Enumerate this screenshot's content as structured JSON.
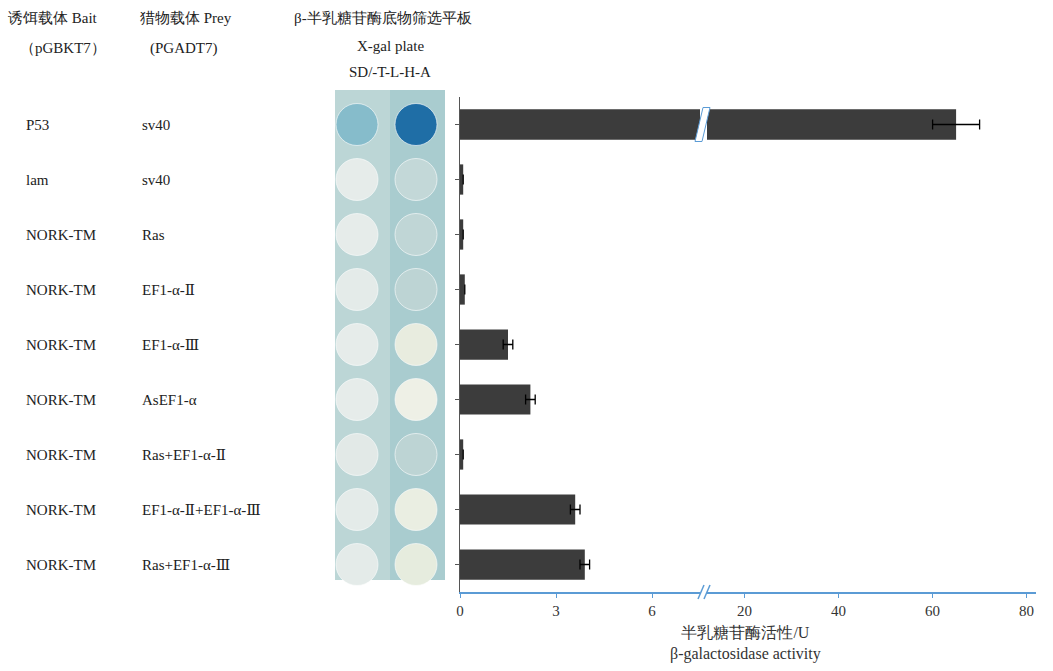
{
  "table": {
    "bait_header": [
      "诱饵载体 Bait",
      "（pGBKT7）"
    ],
    "prey_header": [
      "猎物载体 Prey",
      "(PGADT7)"
    ],
    "bait": [
      "P53",
      "lam",
      "NORK-TM",
      "NORK-TM",
      "NORK-TM",
      "NORK-TM",
      "NORK-TM",
      "NORK-TM",
      "NORK-TM"
    ]
  },
  "plate": {
    "title": "β-半乳糖苷酶底物筛选平板",
    "subtitle": [
      "X-gal plate",
      "SD/-T-L-H-A"
    ],
    "spots": [
      [
        "#86bccb",
        "#1f6ea6"
      ],
      [
        "#e6ecea",
        "#c3d8d8"
      ],
      [
        "#e6ecea",
        "#c0d6d6"
      ],
      [
        "#e4ebe9",
        "#bdd4d4"
      ],
      [
        "#e6ecea",
        "#e8ecdf"
      ],
      [
        "#e6ecea",
        "#eef0e6"
      ],
      [
        "#e2e9e7",
        "#bdd4d4"
      ],
      [
        "#e4ebe9",
        "#eaeee2"
      ],
      [
        "#e4ebe9",
        "#e6ecde"
      ]
    ]
  },
  "chart_data": {
    "type": "bar",
    "orientation": "horizontal",
    "categories": [
      "sv40",
      "sv40",
      "Ras",
      "EF1-α-Ⅱ",
      "EF1-α-Ⅲ",
      "AsEF1-α",
      "Ras+EF1-α-Ⅱ",
      "EF1-α-Ⅱ+EF1-α-Ⅲ",
      "Ras+EF1-α-Ⅲ"
    ],
    "values": [
      65,
      0.1,
      0.1,
      0.15,
      1.5,
      2.2,
      0.1,
      3.6,
      3.9
    ],
    "errors": [
      5,
      0,
      0,
      0,
      0.15,
      0.15,
      0,
      0.15,
      0.15
    ],
    "color": "#3c3c3c",
    "xlabel": [
      "半乳糖苷酶活性/U",
      "β-galactosidase activity"
    ],
    "xlim": [
      [
        0,
        7.5
      ],
      [
        12,
        82
      ]
    ],
    "xticks": [
      0,
      3,
      6,
      20,
      40,
      60,
      80
    ],
    "grid": false
  }
}
